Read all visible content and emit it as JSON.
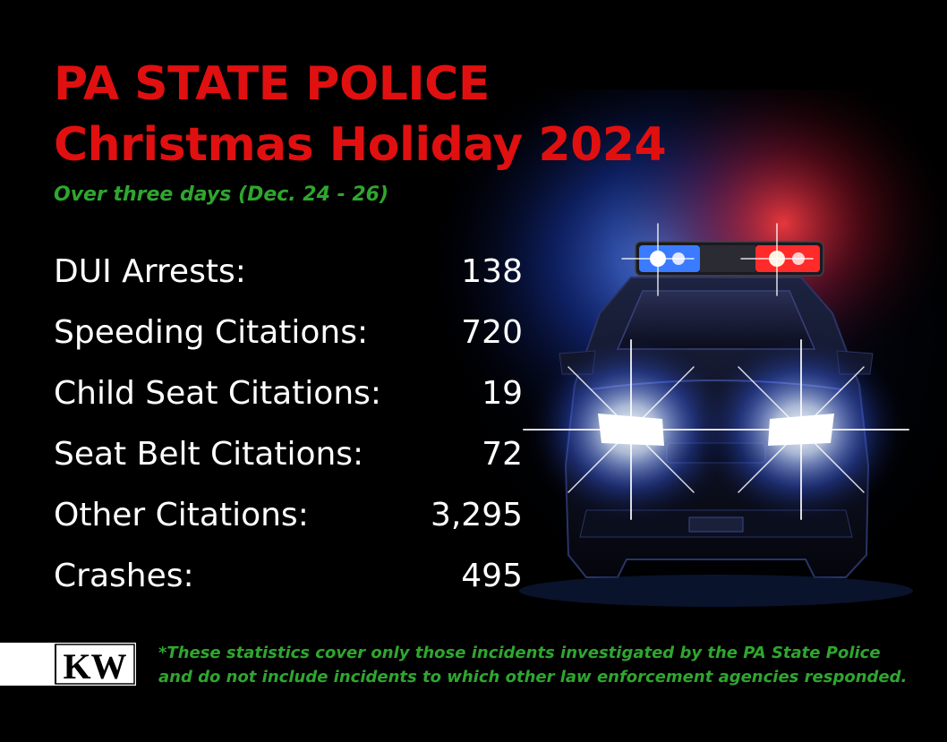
{
  "header": {
    "title_line1": "PA STATE POLICE",
    "title_line2": "Christmas Holiday 2024",
    "subtitle": "Over three days (Dec. 24 - 26)"
  },
  "stats": [
    {
      "label": "DUI Arrests:",
      "value": "138"
    },
    {
      "label": "Speeding Citations:",
      "value": "720"
    },
    {
      "label": "Child Seat Citations:",
      "value": "19"
    },
    {
      "label": "Seat Belt Citations:",
      "value": "72"
    },
    {
      "label": "Other Citations:",
      "value": "3,295"
    },
    {
      "label": "Crashes:",
      "value": "495"
    }
  ],
  "footer": {
    "logo_text": "KW",
    "note_line1": "*These statistics cover only those incidents investigated by the PA State Police",
    "note_line2": "and do not include incidents to which other law enforcement agencies responded."
  },
  "colors": {
    "title_red": "#e01010",
    "subtitle_green": "#2fa62f",
    "text_white": "#ffffff",
    "background": "#000000",
    "siren_blue": "#2a6bff",
    "siren_red": "#ff1e1e"
  },
  "illustration": {
    "icon": "police-car-icon"
  }
}
